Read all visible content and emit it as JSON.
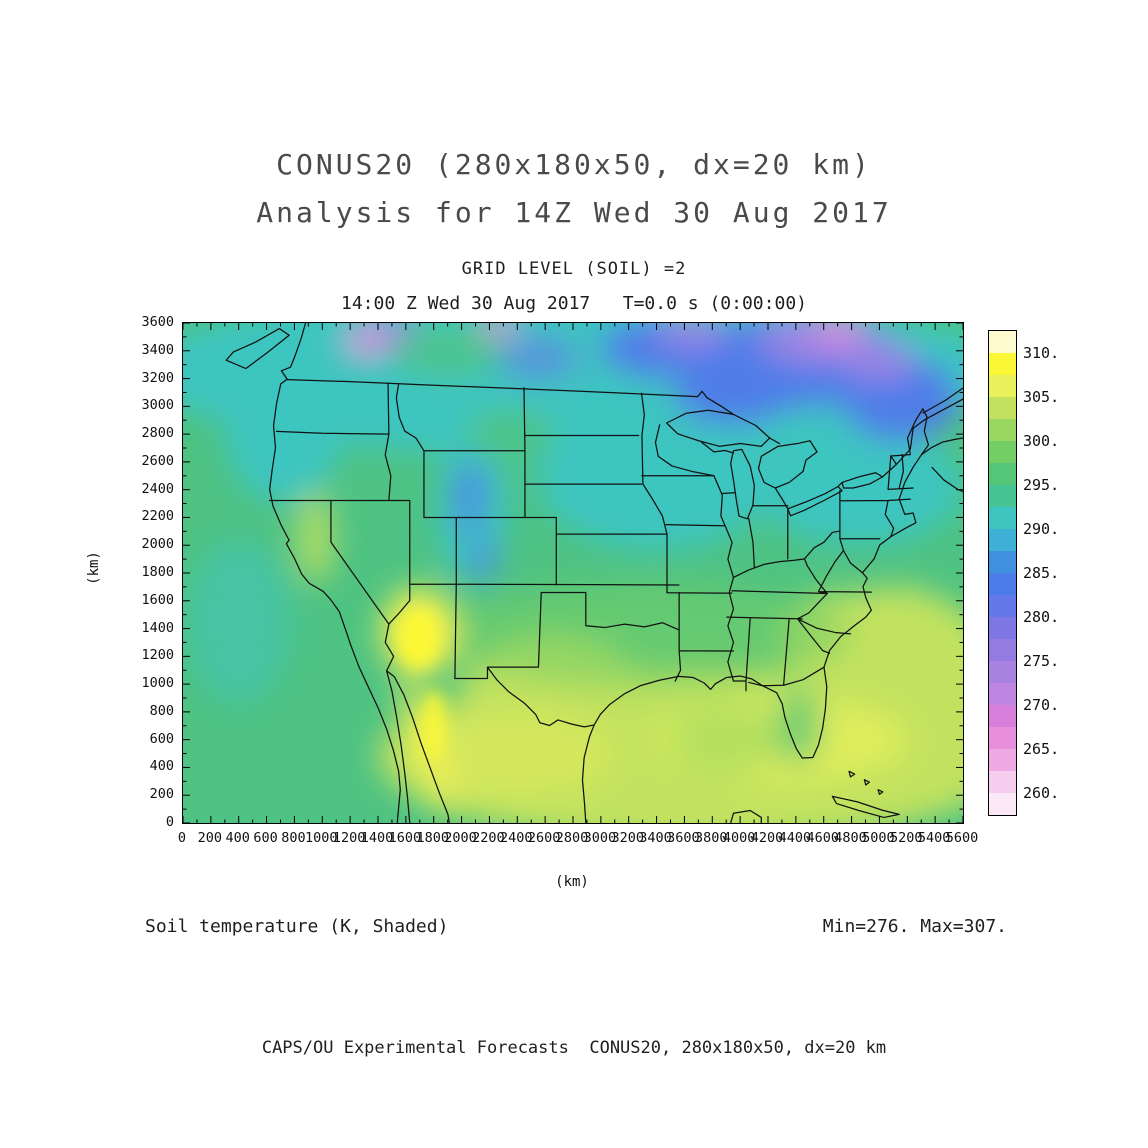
{
  "header": {
    "title_line1": "CONUS20 (280x180x50, dx=20 km)",
    "title_line2": "Analysis for 14Z Wed 30 Aug 2017",
    "grid_level": "GRID LEVEL (SOIL) =2",
    "time_line": "14:00 Z Wed 30 Aug 2017   T=0.0 s (0:00:00)"
  },
  "axes": {
    "x": {
      "label": "(km)",
      "min": 0,
      "max": 5600,
      "tick_step": 200,
      "minor_step": 100
    },
    "y": {
      "label": "(km)",
      "min": 0,
      "max": 3600,
      "tick_step": 200,
      "minor_step": 100
    }
  },
  "colorbar": {
    "units": "K",
    "min": 257.5,
    "max": 312.5,
    "step": 2.5,
    "colors_bottom_to_top": [
      "#FBE9F7",
      "#F6CDEF",
      "#EFA9E3",
      "#E78FDB",
      "#D77FDB",
      "#BE86E0",
      "#A983E1",
      "#947BE2",
      "#7E76E3",
      "#6478E9",
      "#4B7CE9",
      "#3F90DD",
      "#3FB0D5",
      "#3EC5C0",
      "#47C493",
      "#55C577",
      "#74CE66",
      "#9AD761",
      "#C2E25F",
      "#E8F05A",
      "#FAF736",
      "#FCFACE"
    ],
    "tick_labels": [
      "260.",
      "265.",
      "270.",
      "275.",
      "280.",
      "285.",
      "290.",
      "295.",
      "300.",
      "305.",
      "310."
    ]
  },
  "annotations": {
    "field_label": "Soil temperature (K, Shaded)",
    "minmax_label": "Min=276. Max=307."
  },
  "footer": {
    "credit": "CAPS/OU Experimental Forecasts  CONUS20, 280x180x50, dx=20 km"
  },
  "chart_data": {
    "type": "heatmap",
    "title": "CONUS20 (280x180x50, dx=20 km)",
    "subtitle": "Analysis for 14Z Wed 30 Aug 2017",
    "grid_level": "GRID LEVEL (SOIL) =2",
    "valid_time": "14:00 Z Wed 30 Aug 2017",
    "forecast_time": "T=0.0 s (0:00:00)",
    "field": "Soil temperature",
    "units": "K",
    "shading": "Shaded",
    "min": 276,
    "max": 307,
    "xlabel": "(km)",
    "ylabel": "(km)",
    "xlim": [
      0,
      5600
    ],
    "ylim": [
      0,
      3600
    ],
    "x_tick_step": 200,
    "y_tick_step": 200,
    "contour_interval_K": 2.5,
    "colorbar_tick_values_K": [
      260,
      265,
      270,
      275,
      280,
      285,
      290,
      295,
      300,
      305,
      310
    ],
    "grid": false,
    "legend_position": "right colorbar",
    "regions": [
      {
        "area": "southern Arizona and Sonora (Mexico)",
        "approx_value_K": "303-307 (warmest, yellow)"
      },
      {
        "area": "southern Plains, Gulf Coast, Southeast, western Atlantic",
        "approx_value_K": "298-303 (yellow-green)"
      },
      {
        "area": "central CONUS and Pacific offshore",
        "approx_value_K": "292-298 (green)"
      },
      {
        "area": "northern tier, Rockies, Great Lakes, New England",
        "approx_value_K": "285-292 (cyan)"
      },
      {
        "area": "central and eastern Canada at top of domain",
        "approx_value_K": "272-285 (blue to purple, coolest)"
      }
    ]
  }
}
